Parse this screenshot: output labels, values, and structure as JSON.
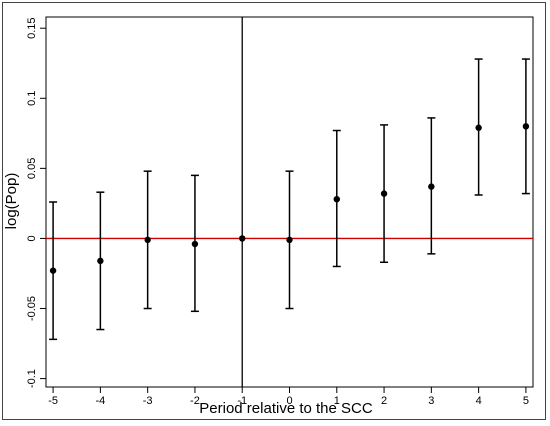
{
  "chart_data": {
    "type": "scatter",
    "title": "",
    "xlabel": "Period relative to the SCC",
    "ylabel": "log(Pop)",
    "x": [
      -5,
      -4,
      -3,
      -2,
      -1,
      0,
      1,
      2,
      3,
      4,
      5
    ],
    "x_ticks": [
      -5,
      -4,
      -3,
      -2,
      -1,
      0,
      1,
      2,
      3,
      4,
      5
    ],
    "x_tick_labels": [
      "-5",
      "-4",
      "-3",
      "-2",
      "-1",
      "0",
      "1",
      "2",
      "3",
      "4",
      "5"
    ],
    "xlim": [
      -5.15,
      5.15
    ],
    "y_ticks": [
      -0.1,
      -0.05,
      0,
      0.05,
      0.1,
      0.15
    ],
    "y_tick_labels": [
      "-0.1",
      "-0.05",
      "0",
      "0.05",
      "0.1",
      "0.15"
    ],
    "ylim": [
      -0.106,
      0.158
    ],
    "series": [
      {
        "estimate": [
          -0.023,
          -0.016,
          -0.001,
          -0.004,
          0.0,
          -0.001,
          0.028,
          0.032,
          0.037,
          0.079,
          0.08
        ],
        "ci_lower": [
          -0.072,
          -0.065,
          -0.05,
          -0.052,
          0.0,
          -0.05,
          -0.02,
          -0.017,
          -0.011,
          0.031,
          0.032
        ],
        "ci_upper": [
          0.026,
          0.033,
          0.048,
          0.045,
          0.0,
          0.048,
          0.077,
          0.081,
          0.086,
          0.128,
          0.128
        ]
      }
    ],
    "reference_lines": {
      "horizontal_y": 0,
      "horizontal_color": "#cc0000",
      "vertical_x": -1,
      "vertical_color": "#000000"
    },
    "grid": false,
    "colors": {
      "points": "#000000",
      "error_bars": "#000000"
    }
  }
}
